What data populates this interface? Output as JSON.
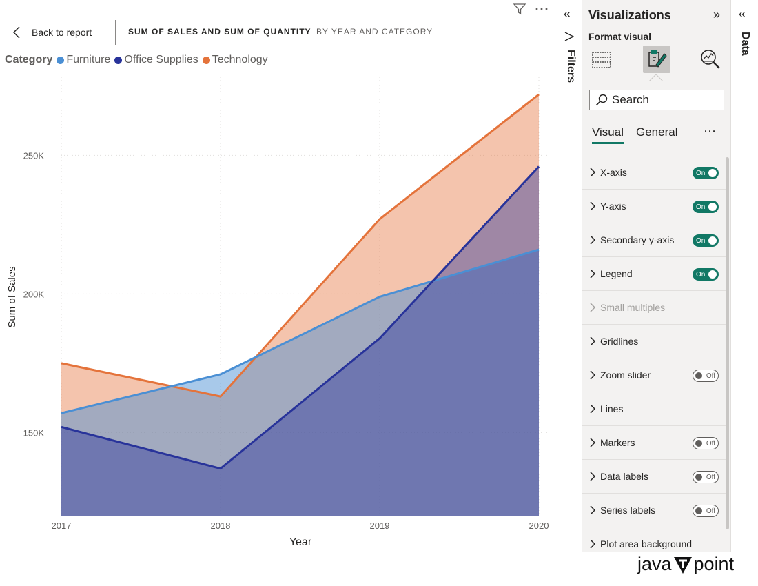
{
  "header": {
    "back_label": "Back to report",
    "visual_title": "SUM OF SALES AND SUM OF QUANTITY",
    "visual_subtitle": "BY YEAR AND CATEGORY"
  },
  "top_icons": [
    "filter-icon",
    "more-options-icon"
  ],
  "legend": {
    "title": "Category",
    "items": [
      {
        "label": "Furniture",
        "color": "#4a8fd4"
      },
      {
        "label": "Office Supplies",
        "color": "#28339a"
      },
      {
        "label": "Technology",
        "color": "#e4733b"
      }
    ]
  },
  "chart_data": {
    "type": "area",
    "xlabel": "Year",
    "ylabel": "Sum of Sales",
    "x": [
      "2017",
      "2018",
      "2019",
      "2020"
    ],
    "ylim": [
      120000,
      270000
    ],
    "yticks": [
      150000,
      200000,
      250000
    ],
    "ytick_labels": [
      "150K",
      "200K",
      "250K"
    ],
    "grid": true,
    "series": [
      {
        "name": "Technology",
        "color": "#e4733b",
        "values": [
          175000,
          163000,
          227000,
          272000
        ]
      },
      {
        "name": "Furniture",
        "color": "#4a8fd4",
        "values": [
          157000,
          171000,
          199000,
          216000
        ]
      },
      {
        "name": "Office Supplies",
        "color": "#28339a",
        "values": [
          152000,
          137000,
          184000,
          246000
        ]
      }
    ]
  },
  "filters_pane": {
    "label": "Filters"
  },
  "viz_pane": {
    "title": "Visualizations",
    "subtitle": "Format visual",
    "search_placeholder": "Search",
    "tabs": [
      "Visual",
      "General"
    ],
    "active_tab": "Visual",
    "cards": [
      {
        "label": "X-axis",
        "toggle": "On"
      },
      {
        "label": "Y-axis",
        "toggle": "On"
      },
      {
        "label": "Secondary y-axis",
        "toggle": "On"
      },
      {
        "label": "Legend",
        "toggle": "On"
      },
      {
        "label": "Small multiples",
        "toggle": null,
        "disabled": true
      },
      {
        "label": "Gridlines",
        "toggle": null
      },
      {
        "label": "Zoom slider",
        "toggle": "Off"
      },
      {
        "label": "Lines",
        "toggle": null
      },
      {
        "label": "Markers",
        "toggle": "Off"
      },
      {
        "label": "Data labels",
        "toggle": "Off"
      },
      {
        "label": "Series labels",
        "toggle": "Off"
      },
      {
        "label": "Plot area background",
        "toggle": null
      }
    ]
  },
  "data_pane": {
    "label": "Data"
  },
  "watermark": {
    "left": "java",
    "right": "point"
  }
}
